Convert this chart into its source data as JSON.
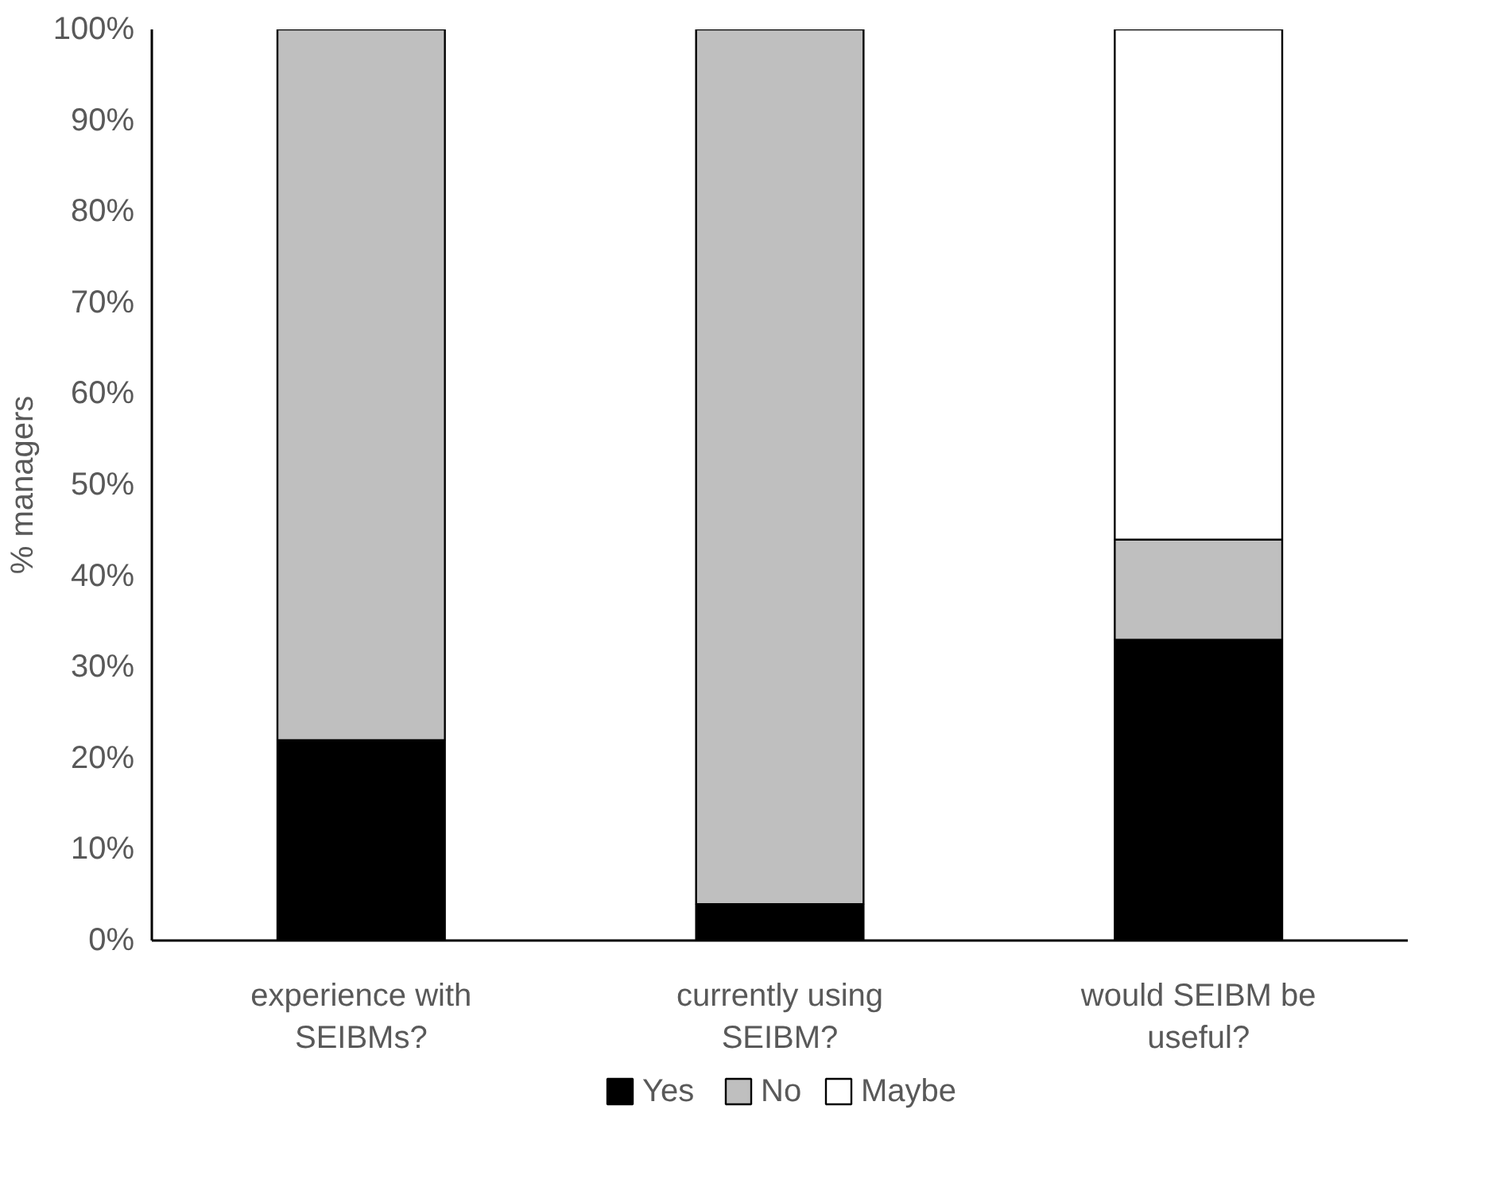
{
  "chart_data": {
    "type": "bar",
    "stacked": true,
    "ylabel": "% managers",
    "categories": [
      "experience with\nSEIBMs?",
      "currently using\nSEIBM?",
      "would SEIBM be\nuseful?"
    ],
    "series": [
      {
        "name": "Yes",
        "color": "#000000",
        "values": [
          22,
          4,
          33
        ]
      },
      {
        "name": "No",
        "color": "#bfbfbf",
        "values": [
          78,
          96,
          11
        ]
      },
      {
        "name": "Maybe",
        "color": "#ffffff",
        "values": [
          null,
          null,
          56
        ]
      }
    ],
    "ylim": [
      0,
      100
    ],
    "yticks": [
      {
        "value": 0,
        "label": "0%"
      },
      {
        "value": 10,
        "label": "10%"
      },
      {
        "value": 20,
        "label": "20%"
      },
      {
        "value": 30,
        "label": "30%"
      },
      {
        "value": 40,
        "label": "40%"
      },
      {
        "value": 50,
        "label": "50%"
      },
      {
        "value": 60,
        "label": "60%"
      },
      {
        "value": 70,
        "label": "70%"
      },
      {
        "value": 80,
        "label": "80%"
      },
      {
        "value": 90,
        "label": "90%"
      },
      {
        "value": 100,
        "label": "100%"
      }
    ],
    "grid": false,
    "legend": "bottom"
  }
}
